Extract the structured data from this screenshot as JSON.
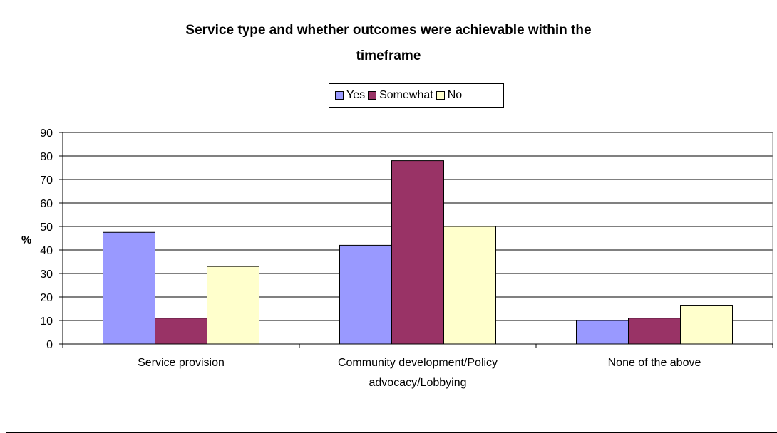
{
  "chart_data": {
    "type": "bar",
    "title_line1": "Service type and whether outcomes were achievable within the",
    "title_line2": "timeframe",
    "ylabel": "%",
    "xlabel": "",
    "ylim": [
      0,
      90
    ],
    "yticks": [
      0,
      10,
      20,
      30,
      40,
      50,
      60,
      70,
      80,
      90
    ],
    "grid": true,
    "legend_position": "top-center",
    "categories": [
      [
        "Service provision"
      ],
      [
        "Community development/Policy",
        "advocacy/Lobbying"
      ],
      [
        "None of the above"
      ]
    ],
    "series": [
      {
        "name": "Yes",
        "color": "#9999ff",
        "values": [
          47.5,
          42,
          10
        ]
      },
      {
        "name": "Somewhat",
        "color": "#993366",
        "values": [
          11,
          78,
          11
        ]
      },
      {
        "name": "No",
        "color": "#ffffcc",
        "values": [
          33,
          50,
          16.5
        ]
      }
    ]
  }
}
